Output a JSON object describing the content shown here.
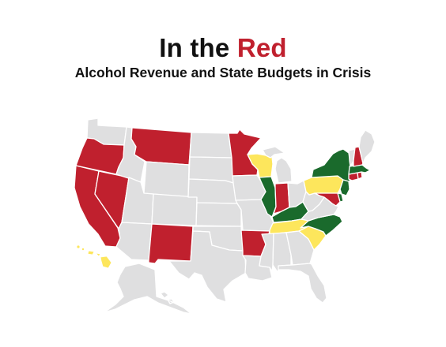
{
  "title": {
    "prefix": "In the",
    "accent": "Red"
  },
  "subtitle": "Alcohol Revenue and State Budgets in Crisis",
  "colors": {
    "red": "#c0202e",
    "green": "#1a6a2c",
    "yellow": "#fde65c",
    "gray": "#dfdfe0",
    "border": "#ffffff"
  },
  "states": [
    {
      "id": "WA",
      "status": "gray"
    },
    {
      "id": "OR",
      "status": "red"
    },
    {
      "id": "CA",
      "status": "red"
    },
    {
      "id": "NV",
      "status": "red"
    },
    {
      "id": "ID",
      "status": "gray"
    },
    {
      "id": "MT",
      "status": "red"
    },
    {
      "id": "WY",
      "status": "gray"
    },
    {
      "id": "UT",
      "status": "gray"
    },
    {
      "id": "AZ",
      "status": "gray"
    },
    {
      "id": "CO",
      "status": "gray"
    },
    {
      "id": "NM",
      "status": "red"
    },
    {
      "id": "ND",
      "status": "gray"
    },
    {
      "id": "SD",
      "status": "gray"
    },
    {
      "id": "NE",
      "status": "gray"
    },
    {
      "id": "KS",
      "status": "gray"
    },
    {
      "id": "OK",
      "status": "gray"
    },
    {
      "id": "TX",
      "status": "gray"
    },
    {
      "id": "MN",
      "status": "red"
    },
    {
      "id": "IA",
      "status": "gray"
    },
    {
      "id": "MO",
      "status": "gray"
    },
    {
      "id": "AR",
      "status": "red"
    },
    {
      "id": "LA",
      "status": "gray"
    },
    {
      "id": "WI",
      "status": "yellow"
    },
    {
      "id": "IL",
      "status": "green"
    },
    {
      "id": "MI",
      "status": "gray"
    },
    {
      "id": "IN",
      "status": "red"
    },
    {
      "id": "OH",
      "status": "gray"
    },
    {
      "id": "KY",
      "status": "green"
    },
    {
      "id": "TN",
      "status": "yellow"
    },
    {
      "id": "MS",
      "status": "gray"
    },
    {
      "id": "AL",
      "status": "gray"
    },
    {
      "id": "GA",
      "status": "gray"
    },
    {
      "id": "FL",
      "status": "gray"
    },
    {
      "id": "SC",
      "status": "yellow"
    },
    {
      "id": "NC",
      "status": "green"
    },
    {
      "id": "VA",
      "status": "gray"
    },
    {
      "id": "WV",
      "status": "gray"
    },
    {
      "id": "PA",
      "status": "yellow"
    },
    {
      "id": "NY",
      "status": "green"
    },
    {
      "id": "NJ",
      "status": "green"
    },
    {
      "id": "DE",
      "status": "green"
    },
    {
      "id": "MD",
      "status": "red"
    },
    {
      "id": "CT",
      "status": "red"
    },
    {
      "id": "RI",
      "status": "red"
    },
    {
      "id": "MA",
      "status": "green"
    },
    {
      "id": "VT",
      "status": "gray"
    },
    {
      "id": "NH",
      "status": "red"
    },
    {
      "id": "ME",
      "status": "gray"
    },
    {
      "id": "AK",
      "status": "gray"
    },
    {
      "id": "HI",
      "status": "yellow"
    }
  ]
}
